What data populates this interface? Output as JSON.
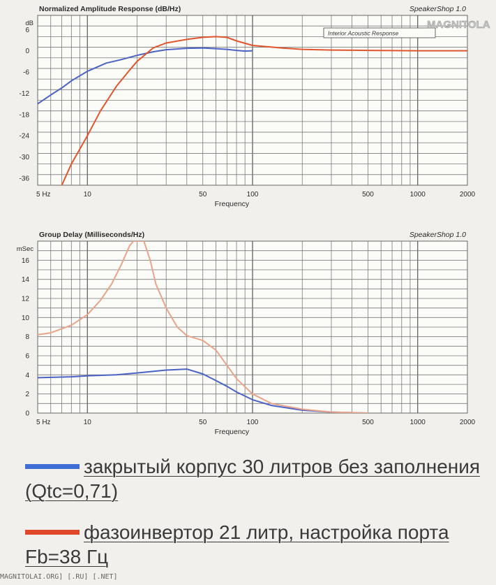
{
  "chart_data": [
    {
      "type": "line",
      "title": "Normalized Amplitude Response (dB/Hz)",
      "brand": "SpeakerShop 1.0",
      "inset_label": "Interior Acoustic Response",
      "xlabel": "Frequency",
      "ylabel": "dB",
      "x_scale": "log",
      "xlim": [
        5,
        2000
      ],
      "ylim": [
        -38,
        10
      ],
      "x_ticks": [
        {
          "value": 5,
          "label": "5  Hz"
        },
        {
          "value": 10,
          "label": "10"
        },
        {
          "value": 50,
          "label": "50"
        },
        {
          "value": 100,
          "label": "100"
        },
        {
          "value": 500,
          "label": "500"
        },
        {
          "value": 1000,
          "label": "1000"
        },
        {
          "value": 2000,
          "label": "2000"
        }
      ],
      "y_ticks": [
        {
          "value": 6,
          "label": "6"
        },
        {
          "value": 0,
          "label": "0"
        },
        {
          "value": -6,
          "label": "-6"
        },
        {
          "value": -12,
          "label": "-12"
        },
        {
          "value": -18,
          "label": "-18"
        },
        {
          "value": -24,
          "label": "-24"
        },
        {
          "value": -30,
          "label": "-30"
        },
        {
          "value": -36,
          "label": "-36"
        }
      ],
      "y_grid_step": 3,
      "series": [
        {
          "color": "#4a63c4",
          "points": [
            [
              5,
              -15
            ],
            [
              6,
              -12.5
            ],
            [
              7,
              -10.5
            ],
            [
              8,
              -8.5
            ],
            [
              10,
              -5.8
            ],
            [
              13,
              -3.5
            ],
            [
              16,
              -2.5
            ],
            [
              20,
              -1.3
            ],
            [
              25,
              -0.3
            ],
            [
              30,
              0.3
            ],
            [
              40,
              0.7
            ],
            [
              50,
              0.8
            ],
            [
              60,
              0.6
            ],
            [
              70,
              0.4
            ],
            [
              80,
              0.1
            ],
            [
              90,
              -0.1
            ],
            [
              100,
              0
            ]
          ]
        },
        {
          "color": "#e1552c",
          "points": [
            [
              7,
              -38
            ],
            [
              8,
              -32
            ],
            [
              10,
              -24
            ],
            [
              12,
              -17
            ],
            [
              15,
              -10
            ],
            [
              18,
              -5.5
            ],
            [
              20,
              -3
            ],
            [
              25,
              0.8
            ],
            [
              30,
              2.2
            ],
            [
              40,
              3.2
            ],
            [
              50,
              3.8
            ],
            [
              60,
              4
            ],
            [
              70,
              3.8
            ],
            [
              80,
              2.8
            ],
            [
              100,
              1.5
            ],
            [
              150,
              0.8
            ],
            [
              200,
              0.4
            ],
            [
              300,
              0.2
            ],
            [
              500,
              0.1
            ],
            [
              1000,
              0
            ],
            [
              2000,
              0
            ]
          ]
        }
      ]
    },
    {
      "type": "line",
      "title": "Group Delay (Milliseconds/Hz)",
      "brand": "SpeakerShop 1.0",
      "xlabel": "Frequency",
      "ylabel": "mSec",
      "x_scale": "log",
      "xlim": [
        5,
        2000
      ],
      "ylim": [
        0,
        18
      ],
      "x_ticks": [
        {
          "value": 5,
          "label": "5  Hz"
        },
        {
          "value": 10,
          "label": "10"
        },
        {
          "value": 50,
          "label": "50"
        },
        {
          "value": 100,
          "label": "100"
        },
        {
          "value": 500,
          "label": "500"
        },
        {
          "value": 1000,
          "label": "1000"
        },
        {
          "value": 2000,
          "label": "2000"
        }
      ],
      "y_ticks": [
        {
          "value": 0,
          "label": "0"
        },
        {
          "value": 2,
          "label": "2"
        },
        {
          "value": 4,
          "label": "4"
        },
        {
          "value": 6,
          "label": "6"
        },
        {
          "value": 8,
          "label": "8"
        },
        {
          "value": 10,
          "label": "10"
        },
        {
          "value": 12,
          "label": "12"
        },
        {
          "value": 14,
          "label": "14"
        },
        {
          "value": 16,
          "label": "16"
        }
      ],
      "y_grid_step": 1,
      "series": [
        {
          "color": "#4a63c4",
          "points": [
            [
              5,
              3.7
            ],
            [
              8,
              3.8
            ],
            [
              10,
              3.9
            ],
            [
              15,
              4
            ],
            [
              20,
              4.2
            ],
            [
              30,
              4.5
            ],
            [
              40,
              4.6
            ],
            [
              50,
              4.1
            ],
            [
              60,
              3.4
            ],
            [
              70,
              2.8
            ],
            [
              80,
              2.2
            ],
            [
              100,
              1.4
            ],
            [
              130,
              0.8
            ],
            [
              200,
              0.3
            ],
            [
              300,
              0.1
            ],
            [
              500,
              0
            ]
          ]
        },
        {
          "color": "#e7a48a",
          "points": [
            [
              5,
              8.2
            ],
            [
              6,
              8.4
            ],
            [
              8,
              9.2
            ],
            [
              10,
              10.3
            ],
            [
              12,
              11.8
            ],
            [
              14,
              13.5
            ],
            [
              16,
              15.5
            ],
            [
              18,
              17.5
            ],
            [
              19,
              18
            ],
            [
              22,
              18
            ],
            [
              24,
              16
            ],
            [
              26,
              13.5
            ],
            [
              30,
              11
            ],
            [
              35,
              9
            ],
            [
              40,
              8.1
            ],
            [
              50,
              7.6
            ],
            [
              60,
              6.6
            ],
            [
              70,
              5
            ],
            [
              80,
              3.6
            ],
            [
              100,
              2
            ],
            [
              130,
              1
            ],
            [
              200,
              0.4
            ],
            [
              300,
              0.1
            ],
            [
              500,
              0
            ]
          ]
        }
      ]
    }
  ],
  "legend": [
    {
      "color": "#3f6fd6",
      "text": "закрытый корпус 30 литров без заполнения (Qtc=0,71)"
    },
    {
      "color": "#e1482a",
      "text": "фазоинвертор 21 литр, настройка порта Fb=38 Гц"
    }
  ],
  "watermark": "MAGNITOLAI.ORG] [.RU] [.NET]",
  "logo": "MAGNITOLA"
}
